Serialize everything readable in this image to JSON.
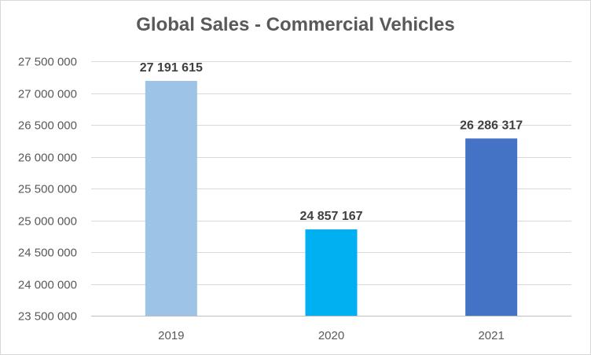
{
  "chart_data": {
    "type": "bar",
    "title": "Global Sales - Commercial Vehicles",
    "xlabel": "",
    "ylabel": "",
    "categories": [
      "2019",
      "2020",
      "2021"
    ],
    "values": [
      27191615,
      24857167,
      26286317
    ],
    "value_labels": [
      "27 191 615",
      "24 857 167",
      "26 286 317"
    ],
    "bar_colors": [
      "#9dc3e6",
      "#00b0f0",
      "#4472c4"
    ],
    "ylim": [
      23500000,
      27500000
    ],
    "y_ticks": [
      23500000,
      24000000,
      24500000,
      25000000,
      25500000,
      26000000,
      26500000,
      27000000,
      27500000
    ],
    "y_tick_labels": [
      "23 500 000",
      "24 000 000",
      "24 500 000",
      "25 000 000",
      "25 500 000",
      "26 000 000",
      "26 500 000",
      "27 000 000",
      "27 500 000"
    ],
    "grid": true,
    "legend": "none",
    "gridline_color": "#d9d9d9",
    "axis_color": "#bfbfbf"
  }
}
